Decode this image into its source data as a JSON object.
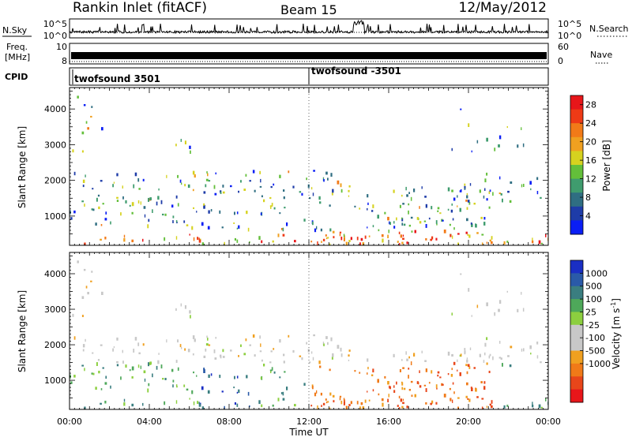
{
  "header": {
    "station": "Rankin Inlet (fitACF)",
    "beam": "Beam 15",
    "date": "12/May/2012"
  },
  "chart_data": [
    {
      "type": "line",
      "panel": "noise",
      "left_label": "N.Sky",
      "right_label": "N.Search",
      "left_ticks": [
        "10^5",
        "10^0"
      ],
      "right_ticks": [
        "10^5",
        "10^0"
      ],
      "scale": "log"
    },
    {
      "type": "line",
      "panel": "frequency",
      "left_label_lines": [
        "Freq.",
        "[MHz]"
      ],
      "left_ticks": [
        10,
        8
      ],
      "right_label": "Nave",
      "right_ticks": [
        60,
        0
      ]
    },
    {
      "type": "table",
      "panel": "cpid",
      "label": "CPID",
      "segments": [
        {
          "name": "twofsound 3501",
          "start_hour": 0
        },
        {
          "name": "twofsound -3501",
          "start_hour": 12
        }
      ]
    },
    {
      "type": "heatmap",
      "panel": "power",
      "ylabel": "Slant Range [km]",
      "yticks": [
        1000,
        2000,
        3000,
        4000
      ],
      "ylim": [
        180,
        4600
      ],
      "xlim": [
        0,
        24
      ],
      "colorbar_label": "Power [dB]",
      "colorbar_ticks": [
        4,
        8,
        12,
        16,
        20,
        24,
        28
      ],
      "colorbar_range": [
        0,
        30
      ],
      "colors": [
        "#0a1ef5",
        "#1e3ca8",
        "#2f6e82",
        "#3f9c6e",
        "#63bf3a",
        "#d6d21f",
        "#f0a020",
        "#f27a18",
        "#ee3a16",
        "#e8161a"
      ]
    },
    {
      "type": "heatmap",
      "panel": "velocity",
      "ylabel": "Slant Range [km]",
      "yticks": [
        1000,
        2000,
        3000,
        4000
      ],
      "ylim": [
        180,
        4600
      ],
      "xlim": [
        0,
        24
      ],
      "xticks": [
        "00:00",
        "04:00",
        "08:00",
        "12:00",
        "16:00",
        "20:00",
        "00:00"
      ],
      "xlabel": "Time UT",
      "colorbar_label": "Velocity [m s",
      "colorbar_unit_sup": "-1",
      "colorbar_unit_close": "]",
      "colorbar_ticks": [
        "1000",
        "500",
        "100",
        "25",
        "-25",
        "-100",
        "-500",
        "-1000"
      ],
      "colors": [
        "#1a2fc4",
        "#2a5aa8",
        "#3a7e80",
        "#4ea85a",
        "#8ccf3f",
        "#c8c8c8",
        "#c8c8c8",
        "#f0a020",
        "#f07a18",
        "#e8461a",
        "#e8161a"
      ]
    }
  ]
}
